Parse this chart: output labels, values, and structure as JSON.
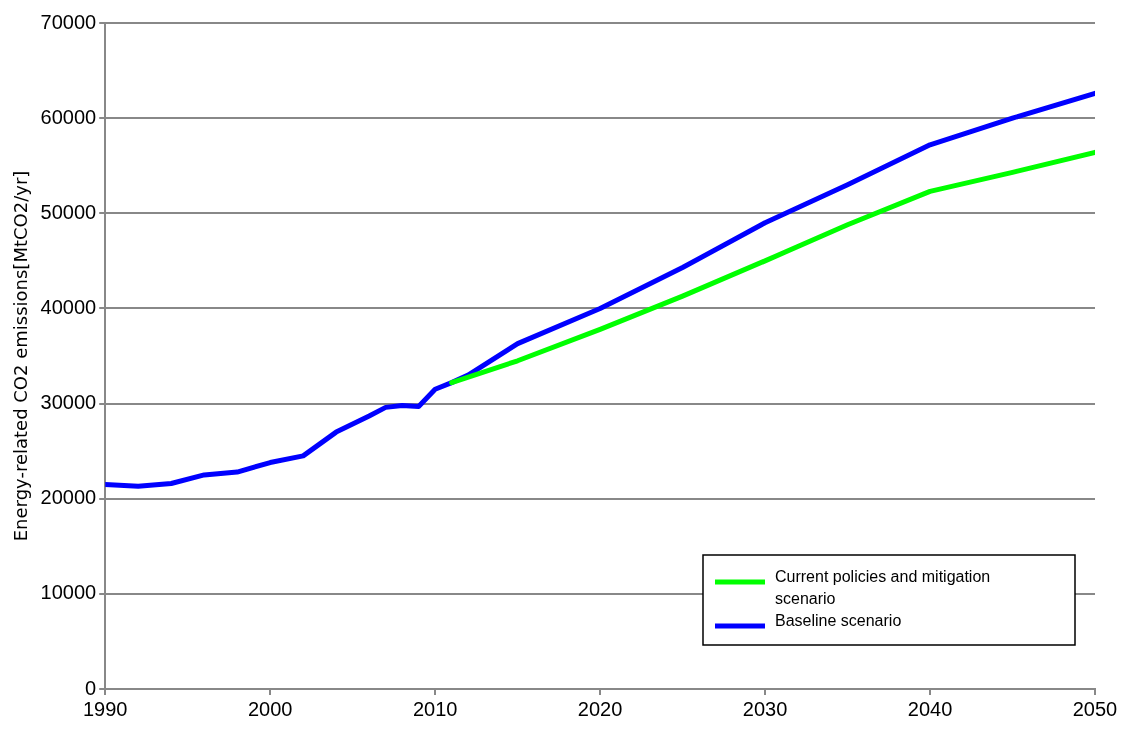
{
  "chart_data": {
    "type": "line",
    "ylabel": "Energy-related CO2 emissions[MtCO2/yr]",
    "xlim": [
      1990,
      2050
    ],
    "xticks": [
      1990,
      2000,
      2010,
      2020,
      2030,
      2040,
      2050
    ],
    "ylim": [
      0,
      70000
    ],
    "yticks": [
      0,
      10000,
      20000,
      30000,
      40000,
      50000,
      60000,
      70000
    ],
    "grid": "y",
    "legend": "bottom right",
    "marker": "none",
    "line_style": "solid",
    "series": [
      {
        "name": "Current policies and mitigation scenario",
        "color": "#00ff00",
        "x": [
          2011,
          2015,
          2020,
          2025,
          2030,
          2035,
          2040,
          2045,
          2050
        ],
        "values": [
          32200,
          34500,
          37800,
          41300,
          45000,
          48800,
          52300,
          54300,
          56400
        ]
      },
      {
        "name": "Baseline scenario",
        "color": "#0000ff",
        "x": [
          1990,
          1992,
          1994,
          1996,
          1998,
          2000,
          2002,
          2004,
          2006,
          2007,
          2008,
          2009,
          2010,
          2011,
          2012,
          2015,
          2020,
          2025,
          2030,
          2035,
          2040,
          2045,
          2050
        ],
        "values": [
          21500,
          21300,
          21600,
          22500,
          22800,
          23800,
          24500,
          27000,
          28700,
          29600,
          29800,
          29700,
          31500,
          32200,
          33000,
          36300,
          40000,
          44300,
          49000,
          53000,
          57200,
          60000,
          62600
        ]
      }
    ]
  }
}
